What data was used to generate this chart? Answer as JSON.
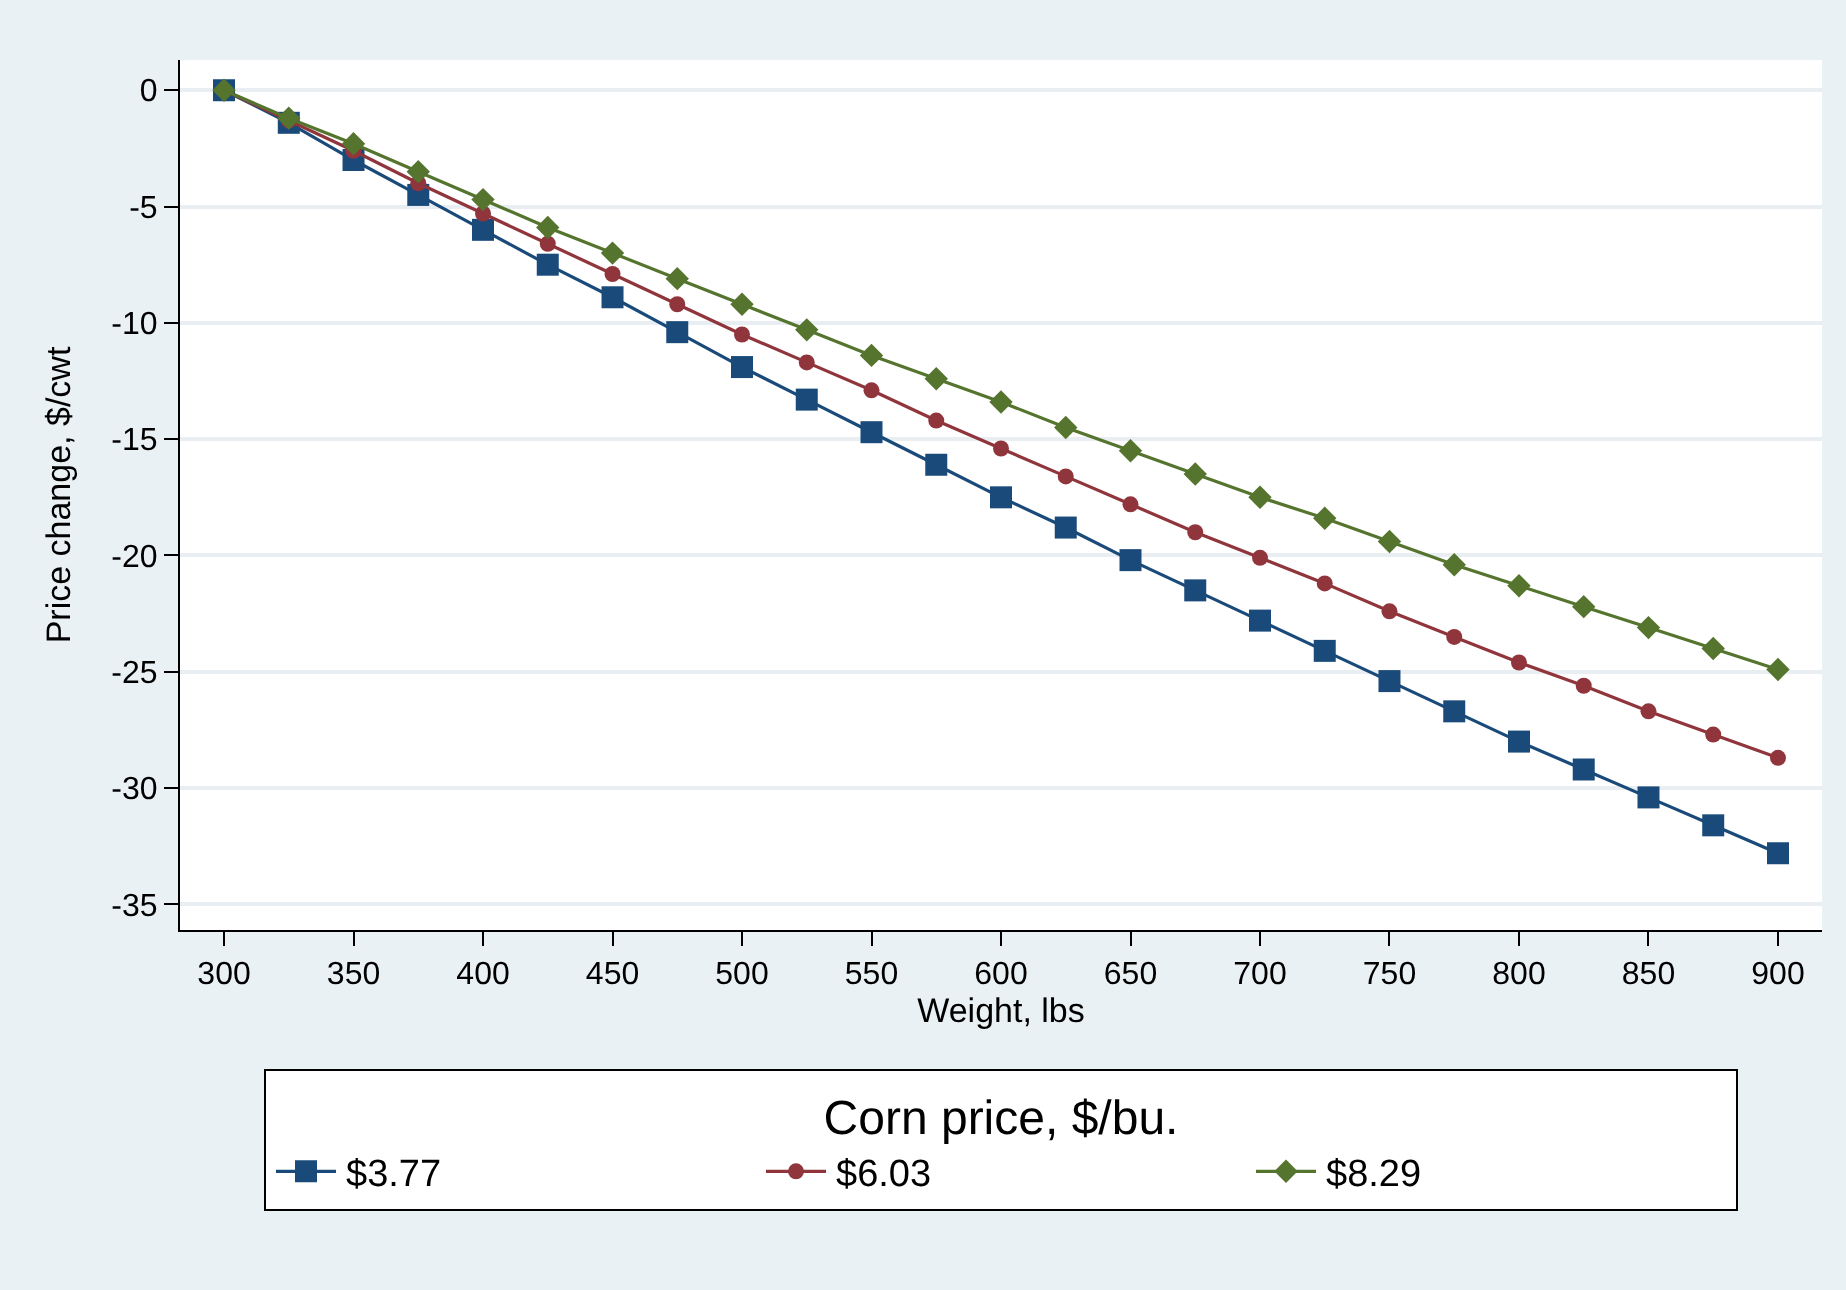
{
  "chart_data": {
    "type": "line",
    "xlabel": "Weight, lbs",
    "ylabel": "Price change, $/cwt",
    "legend_title": "Corn price, $/bu.",
    "legend": "bottom",
    "x": [
      300,
      325,
      350,
      375,
      400,
      425,
      450,
      475,
      500,
      525,
      550,
      575,
      600,
      625,
      650,
      675,
      700,
      725,
      750,
      775,
      800,
      825,
      850,
      875,
      900
    ],
    "series": [
      {
        "name": "$3.77",
        "color": "#1a4a7a",
        "marker": "square",
        "values": [
          0,
          -1.4,
          -3.0,
          -4.5,
          -6.0,
          -7.5,
          -8.9,
          -10.4,
          -11.9,
          -13.3,
          -14.7,
          -16.1,
          -17.5,
          -18.8,
          -20.2,
          -21.5,
          -22.8,
          -24.1,
          -25.4,
          -26.7,
          -28.0,
          -29.2,
          -30.4,
          -31.6,
          -32.8
        ]
      },
      {
        "name": "$6.03",
        "color": "#90353b",
        "marker": "circle",
        "values": [
          0,
          -1.3,
          -2.6,
          -4.0,
          -5.3,
          -6.6,
          -7.9,
          -9.2,
          -10.5,
          -11.7,
          -12.9,
          -14.2,
          -15.4,
          -16.6,
          -17.8,
          -19.0,
          -20.1,
          -21.2,
          -22.4,
          -23.5,
          -24.6,
          -25.6,
          -26.7,
          -27.7,
          -28.7
        ]
      },
      {
        "name": "$8.29",
        "color": "#55752f",
        "marker": "diamond",
        "values": [
          0,
          -1.2,
          -2.3,
          -3.5,
          -4.7,
          -5.9,
          -7.0,
          -8.1,
          -9.2,
          -10.3,
          -11.4,
          -12.4,
          -13.4,
          -14.5,
          -15.5,
          -16.5,
          -17.5,
          -18.4,
          -19.4,
          -20.4,
          -21.3,
          -22.2,
          -23.1,
          -24.0,
          -24.9
        ]
      }
    ],
    "xlim": [
      283,
      917
    ],
    "xticks": [
      300,
      350,
      400,
      450,
      500,
      550,
      600,
      650,
      700,
      750,
      800,
      850,
      900
    ],
    "ylim": [
      -36.1,
      1.3
    ],
    "yticks": [
      0,
      -5,
      -10,
      -15,
      -20,
      -25,
      -30,
      -35
    ],
    "grid": "y"
  }
}
